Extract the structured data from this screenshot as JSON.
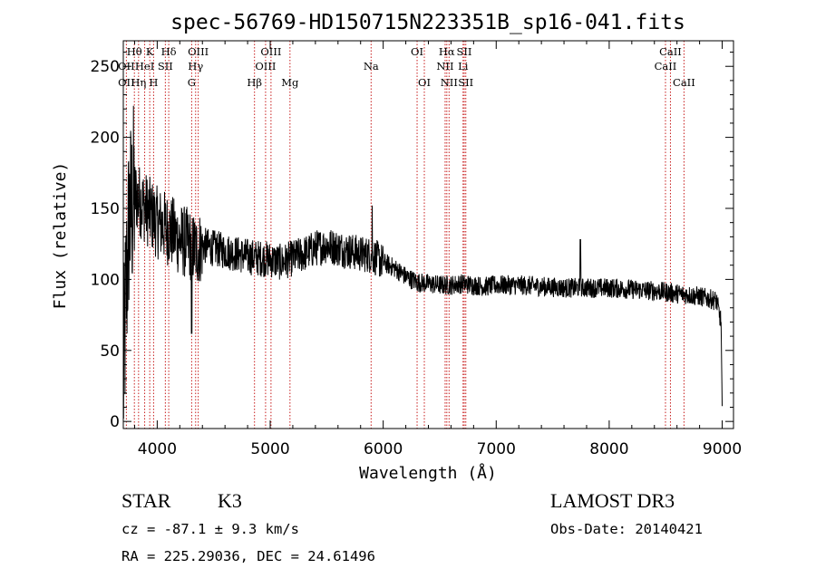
{
  "chart_data": {
    "type": "line",
    "title": "spec-56769-HD150715N223351B_sp16-041.fits",
    "xlabel": "Wavelength (Å)",
    "ylabel": "Flux (relative)",
    "xlim": [
      3700,
      9100
    ],
    "ylim": [
      -5,
      268
    ],
    "xticks": [
      4000,
      5000,
      6000,
      7000,
      8000,
      9000
    ],
    "yticks": [
      0,
      50,
      100,
      150,
      200,
      250
    ],
    "spectral_lines": [
      {
        "label": "Hθ",
        "wavelength": 3798,
        "row": 1
      },
      {
        "label": "K",
        "wavelength": 3934,
        "row": 1
      },
      {
        "label": "Hδ",
        "wavelength": 4102,
        "row": 1
      },
      {
        "label": "OIII",
        "wavelength": 4363,
        "row": 1
      },
      {
        "label": "OIII",
        "wavelength": 5007,
        "row": 1
      },
      {
        "label": "OI",
        "wavelength": 6300,
        "row": 1
      },
      {
        "label": "Hα",
        "wavelength": 6563,
        "row": 1
      },
      {
        "label": "SII",
        "wavelength": 6717,
        "row": 1
      },
      {
        "label": "CaII",
        "wavelength": 8542,
        "row": 1
      },
      {
        "label": "OII",
        "wavelength": 3727,
        "row": 2
      },
      {
        "label": "HeI",
        "wavelength": 3889,
        "row": 2
      },
      {
        "label": "SII",
        "wavelength": 4072,
        "row": 2
      },
      {
        "label": "Hγ",
        "wavelength": 4340,
        "row": 2
      },
      {
        "label": "OIII",
        "wavelength": 4959,
        "row": 2
      },
      {
        "label": "Na",
        "wavelength": 5893,
        "row": 2
      },
      {
        "label": "NII",
        "wavelength": 6548,
        "row": 2
      },
      {
        "label": "Li",
        "wavelength": 6707,
        "row": 2
      },
      {
        "label": "CaII",
        "wavelength": 8498,
        "row": 2
      },
      {
        "label": "OII",
        "wavelength": 3727,
        "row": 3
      },
      {
        "label": "Hη",
        "wavelength": 3835,
        "row": 3
      },
      {
        "label": "H",
        "wavelength": 3968,
        "row": 3
      },
      {
        "label": "G",
        "wavelength": 4305,
        "row": 3
      },
      {
        "label": "Hβ",
        "wavelength": 4861,
        "row": 3
      },
      {
        "label": "Mg",
        "wavelength": 5175,
        "row": 3
      },
      {
        "label": "OI",
        "wavelength": 6364,
        "row": 3
      },
      {
        "label": "NII",
        "wavelength": 6583,
        "row": 3
      },
      {
        "label": "SII",
        "wavelength": 6731,
        "row": 3
      },
      {
        "label": "CaII",
        "wavelength": 8662,
        "row": 3
      }
    ],
    "series": [
      {
        "name": "flux",
        "x": [
          3700,
          3720,
          3750,
          3800,
          3850,
          3900,
          3950,
          4000,
          4050,
          4100,
          4150,
          4200,
          4250,
          4300,
          4350,
          4400,
          4500,
          4600,
          4700,
          4800,
          4900,
          5000,
          5100,
          5200,
          5300,
          5400,
          5500,
          5600,
          5700,
          5800,
          5900,
          6000,
          6100,
          6200,
          6300,
          6400,
          6500,
          6600,
          6700,
          6800,
          6900,
          7000,
          7200,
          7400,
          7600,
          7800,
          8000,
          8200,
          8400,
          8600,
          8800,
          8950,
          8990,
          9000
        ],
        "values": [
          20,
          80,
          140,
          160,
          155,
          150,
          145,
          140,
          138,
          135,
          132,
          128,
          126,
          124,
          120,
          124,
          122,
          120,
          118,
          116,
          115,
          114,
          112,
          115,
          118,
          122,
          124,
          122,
          120,
          118,
          117,
          112,
          108,
          102,
          98,
          97,
          96,
          96,
          97,
          96,
          95,
          96,
          96,
          95,
          94,
          94,
          94,
          93,
          92,
          90,
          88,
          85,
          70,
          10
        ]
      }
    ]
  },
  "info": {
    "object_class": "STAR",
    "subclass": "K3",
    "survey": "LAMOST DR3",
    "cz": "cz = -87.1 ± 9.3 km/s",
    "obs_date": "Obs-Date: 20140421",
    "coords": "RA = 225.29036, DEC =  24.61496"
  },
  "colors": {
    "line_marker": "#c81e1e",
    "spectrum": "#000000"
  }
}
